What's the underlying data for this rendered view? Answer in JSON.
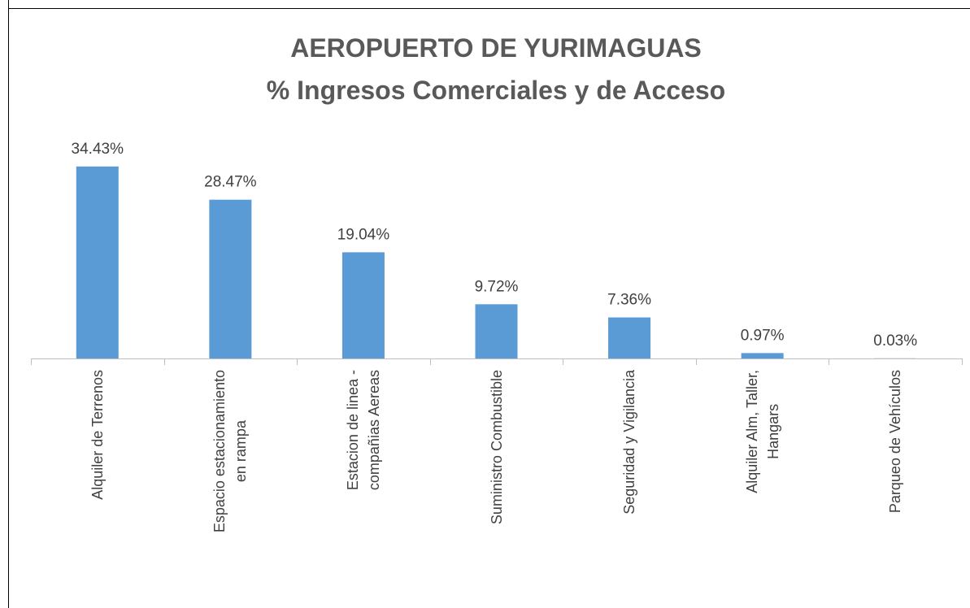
{
  "chart_data": {
    "type": "bar",
    "title": "AEROPUERTO DE YURIMAGUAS",
    "subtitle": "% Ingresos Comerciales y de Acceso",
    "categories": [
      "Alquiler de Terrenos",
      "Espacio estacionamiento\nen rampa",
      "Estacion de linea -\ncompañias Aereas",
      "Suministro Combustible",
      "Seguridad y Vigilancia",
      "Alquiler Alm, Taller,\nHangars",
      "Parqueo de Vehículos"
    ],
    "values": [
      34.43,
      28.47,
      19.04,
      9.72,
      7.36,
      0.97,
      0.03
    ],
    "value_labels": [
      "34.43%",
      "28.47%",
      "19.04%",
      "9.72%",
      "7.36%",
      "0.97%",
      "0.03%"
    ],
    "color": "#5b9bd5"
  }
}
